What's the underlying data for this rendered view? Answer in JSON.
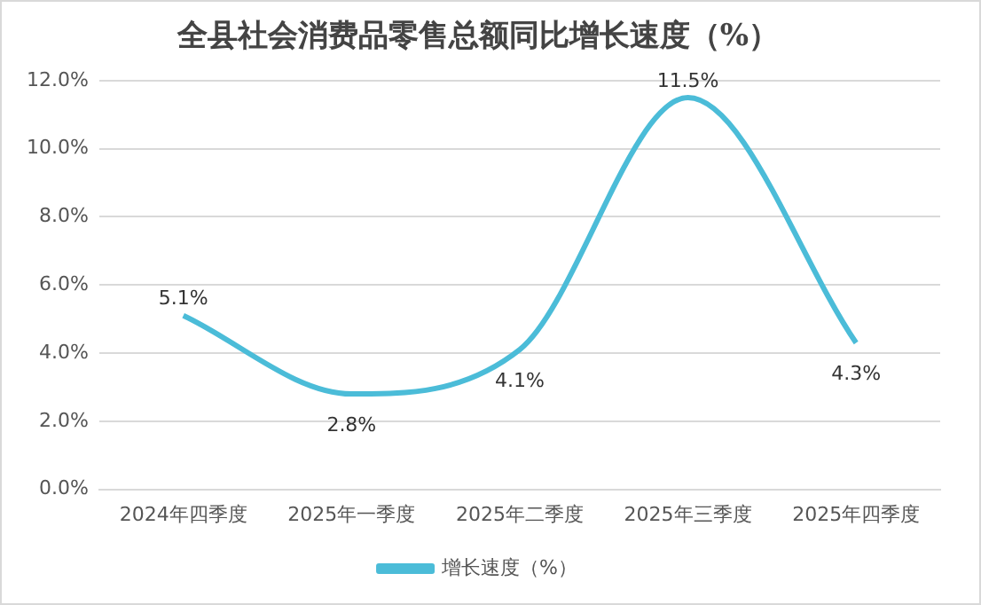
{
  "chart_data": {
    "type": "line",
    "title": "全县社会消费品零售总额同比增长速度（%）",
    "categories": [
      "2024年四季度",
      "2025年一季度",
      "2025年二季度",
      "2025年三季度",
      "2025年四季度"
    ],
    "series": [
      {
        "name": "增长速度（%）",
        "color": "#4bbcd8",
        "values": [
          5.1,
          2.8,
          4.1,
          11.5,
          4.3
        ],
        "value_labels": [
          "5.1%",
          "2.8%",
          "4.1%",
          "11.5%",
          "4.3%"
        ]
      }
    ],
    "ylim": [
      0,
      12
    ],
    "yticks": [
      {
        "value": 0,
        "label": "0.0%"
      },
      {
        "value": 2,
        "label": "2.0%"
      },
      {
        "value": 4,
        "label": "4.0%"
      },
      {
        "value": 6,
        "label": "6.0%"
      },
      {
        "value": 8,
        "label": "8.0%"
      },
      {
        "value": 10,
        "label": "10.0%"
      },
      {
        "value": 12,
        "label": "12.0%"
      }
    ],
    "grid": "y",
    "legend": "bottom",
    "marker": "none",
    "line_style": "solid"
  }
}
